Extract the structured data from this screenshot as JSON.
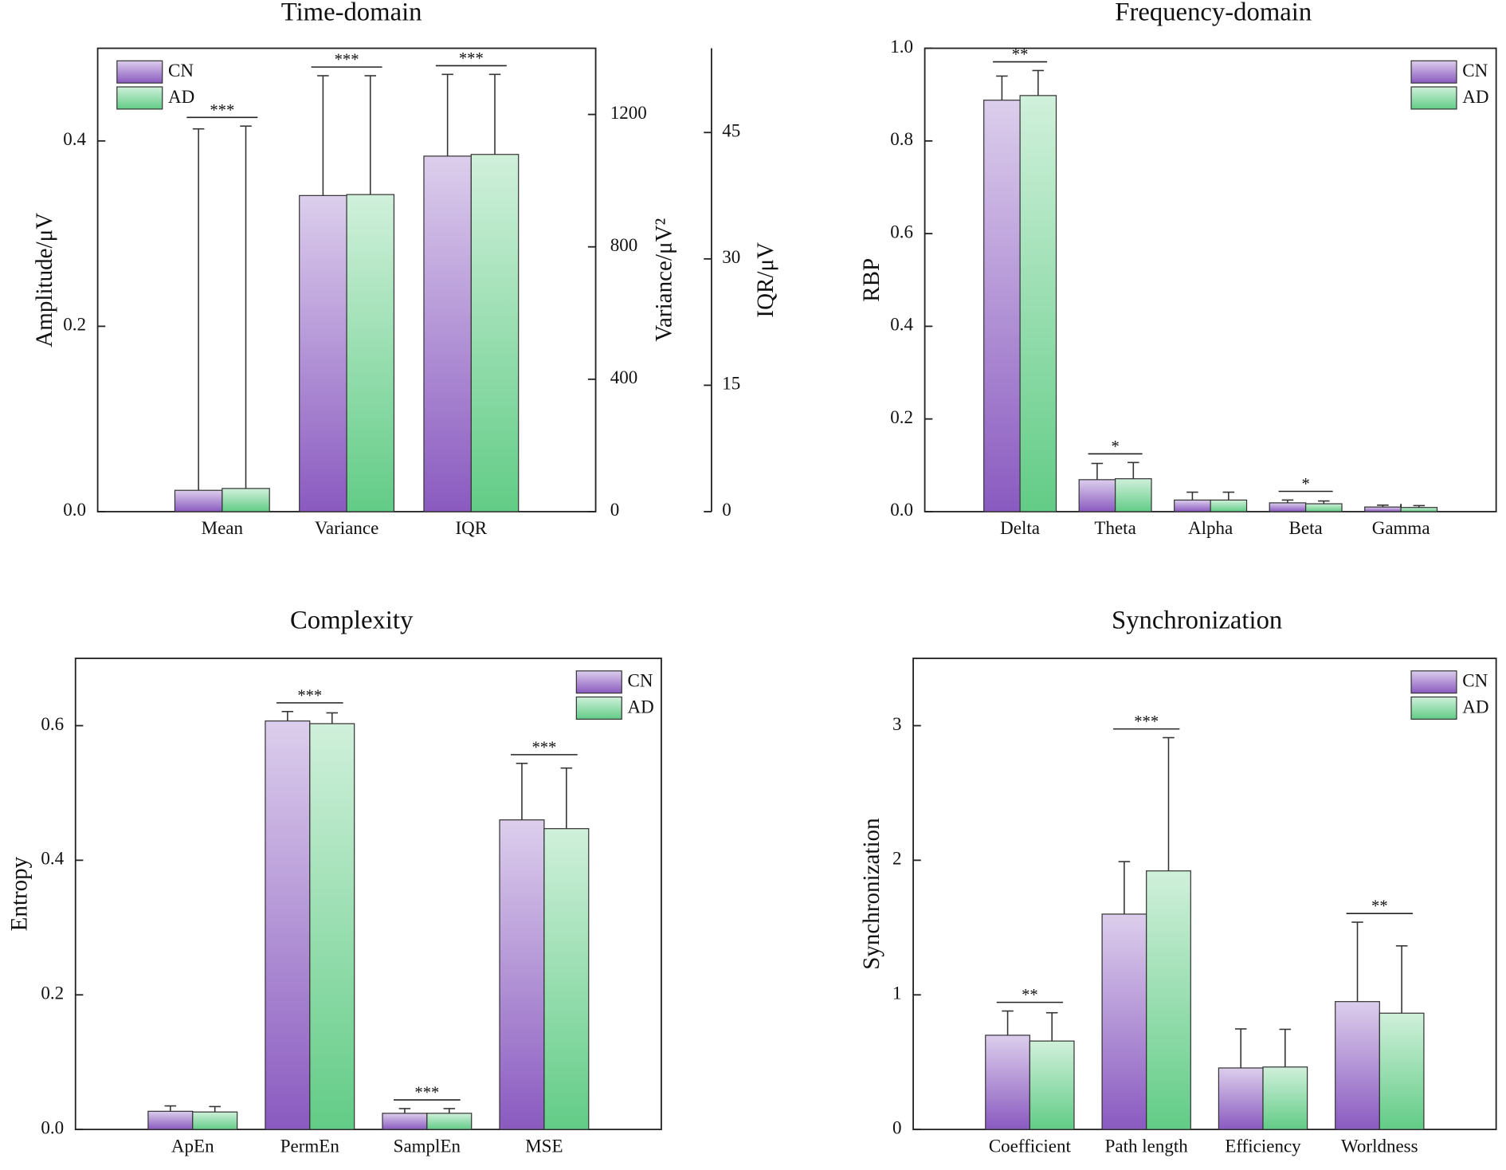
{
  "chart_data": [
    {
      "type": "bar",
      "title": "Time-domain",
      "ylabel": "Amplitude/μV",
      "y2label": "Variance/μV²",
      "y3label": "IQR/μV",
      "categories": [
        "Mean",
        "Variance",
        "IQR"
      ],
      "category_axis": [
        "y",
        "y2",
        "y3"
      ],
      "series": [
        {
          "name": "CN",
          "color": "#8a5ac0",
          "values": [
            0.023,
            955,
            42.2
          ],
          "errors": [
            0.39,
            362,
            9.7
          ]
        },
        {
          "name": "AD",
          "color": "#62cc86",
          "values": [
            0.025,
            958,
            42.4
          ],
          "errors": [
            0.391,
            359,
            9.5
          ]
        }
      ],
      "significance": [
        "***",
        "***",
        "***"
      ],
      "ylim": [
        0,
        0.5
      ],
      "yticks": [
        {
          "value": 0,
          "label": "0.0"
        },
        0.2,
        0.4
      ],
      "y2lim": [
        0,
        1400
      ],
      "y2ticks": [
        0,
        400,
        800,
        1200
      ],
      "y3lim": [
        0,
        55
      ],
      "y3ticks": [
        0,
        15,
        30,
        45
      ],
      "legend": "upper left"
    },
    {
      "type": "bar",
      "title": "Frequency-domain",
      "ylabel": "RBP",
      "categories": [
        "Delta",
        "Theta",
        "Alpha",
        "Beta",
        "Gamma"
      ],
      "series": [
        {
          "name": "CN",
          "color": "#8a5ac0",
          "values": [
            0.888,
            0.069,
            0.025,
            0.019,
            0.01
          ],
          "errors": [
            0.052,
            0.035,
            0.017,
            0.006,
            0.004
          ]
        },
        {
          "name": "AD",
          "color": "#62cc86",
          "values": [
            0.898,
            0.071,
            0.025,
            0.017,
            0.009
          ],
          "errors": [
            0.054,
            0.035,
            0.017,
            0.006,
            0.004
          ]
        }
      ],
      "significance": [
        "**",
        "*",
        null,
        "*",
        null
      ],
      "ylim": [
        0,
        1.0
      ],
      "yticks": [
        {
          "value": 0,
          "label": "0.0"
        },
        0.2,
        0.4,
        0.6,
        0.8,
        {
          "value": 1,
          "label": "1.0"
        }
      ],
      "legend": "upper right"
    },
    {
      "type": "bar",
      "title": "Complexity",
      "ylabel": "Entropy",
      "categories": [
        "ApEn",
        "PermEn",
        "SamplEn",
        "MSE"
      ],
      "series": [
        {
          "name": "CN",
          "color": "#8a5ac0",
          "values": [
            0.027,
            0.607,
            0.024,
            0.46
          ],
          "errors": [
            0.008,
            0.014,
            0.007,
            0.084
          ]
        },
        {
          "name": "AD",
          "color": "#62cc86",
          "values": [
            0.026,
            0.603,
            0.024,
            0.447
          ],
          "errors": [
            0.008,
            0.016,
            0.007,
            0.09
          ]
        }
      ],
      "significance": [
        null,
        "***",
        "***",
        "***"
      ],
      "ylim": [
        0,
        0.7
      ],
      "yticks": [
        {
          "value": 0,
          "label": "0.0"
        },
        0.2,
        0.4,
        0.6
      ],
      "legend": "upper right"
    },
    {
      "type": "bar",
      "title": "Synchronization",
      "ylabel": "Synchronization",
      "categories": [
        "Coefficient",
        "Path length",
        "Efficiency",
        "Worldness"
      ],
      "series": [
        {
          "name": "CN",
          "color": "#8a5ac0",
          "values": [
            0.7,
            1.6,
            0.457,
            0.95
          ],
          "errors": [
            0.18,
            0.39,
            0.29,
            0.59
          ]
        },
        {
          "name": "AD",
          "color": "#62cc86",
          "values": [
            0.657,
            1.921,
            0.464,
            0.864
          ],
          "errors": [
            0.21,
            0.99,
            0.28,
            0.5
          ]
        }
      ],
      "significance": [
        "**",
        "***",
        null,
        "**"
      ],
      "ylim": [
        0,
        3.5
      ],
      "yticks": [
        0,
        1,
        2,
        3
      ],
      "legend": "upper right"
    }
  ]
}
